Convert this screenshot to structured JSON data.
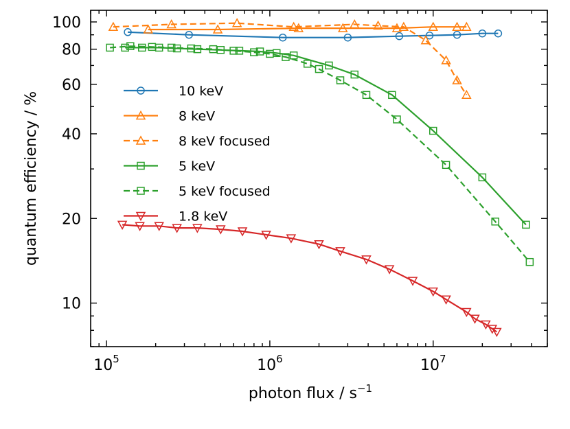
{
  "chart_data": {
    "type": "line",
    "title": "",
    "xlabel": "photon flux / s",
    "xlabel_superscript": "−1",
    "ylabel": "quantum efficiency / %",
    "xscale": "log",
    "yscale": "log",
    "xlim": [
      80000,
      50000000
    ],
    "ylim": [
      7,
      110
    ],
    "xticks": [
      {
        "value": 100000,
        "base": "10",
        "exp": "5"
      },
      {
        "value": 1000000,
        "base": "10",
        "exp": "6"
      },
      {
        "value": 10000000,
        "base": "10",
        "exp": "7"
      }
    ],
    "yticks": [
      {
        "value": 10,
        "label": "10"
      },
      {
        "value": 20,
        "label": "20"
      },
      {
        "value": 40,
        "label": "40"
      },
      {
        "value": 60,
        "label": "60"
      },
      {
        "value": 80,
        "label": "80"
      },
      {
        "value": 100,
        "label": "100"
      }
    ],
    "grid": false,
    "legend_position": "center-left",
    "series": [
      {
        "name": "10 keV",
        "color": "#1f77b4",
        "dash": "solid",
        "marker": "circle",
        "x": [
          135000,
          320000,
          1200000,
          3000000,
          6200000,
          9500000,
          14000000,
          20000000,
          25000000
        ],
        "y": [
          92,
          90,
          88,
          88,
          89,
          89.5,
          90,
          91,
          91
        ]
      },
      {
        "name": "8 keV",
        "color": "#ff7f0e",
        "dash": "solid",
        "marker": "triangle-up",
        "x": [
          180000,
          480000,
          1500000,
          2800000,
          6000000,
          10000000,
          14000000,
          16000000
        ],
        "y": [
          94,
          94,
          95,
          95,
          95,
          96,
          96,
          96
        ]
      },
      {
        "name": "8 keV focused",
        "color": "#ff7f0e",
        "dash": "dashed",
        "marker": "triangle-up",
        "x": [
          110000,
          250000,
          630000,
          1400000,
          3300000,
          4600000,
          6600000,
          9000000,
          12000000,
          14000000,
          16000000
        ],
        "y": [
          96,
          98,
          99,
          96,
          98,
          97,
          96,
          86,
          73,
          62,
          55
        ]
      },
      {
        "name": "5 keV",
        "color": "#2ca02c",
        "dash": "solid",
        "marker": "square",
        "x": [
          130000,
          165000,
          210000,
          270000,
          360000,
          500000,
          650000,
          870000,
          1100000,
          1400000,
          2300000,
          3300000,
          5600000,
          10000000,
          20000000,
          37000000
        ],
        "y": [
          81,
          81,
          81,
          80.5,
          80,
          79.5,
          79,
          78.5,
          77.5,
          76,
          70,
          65,
          55,
          41,
          28,
          19
        ]
      },
      {
        "name": "5 keV focused",
        "color": "#2ca02c",
        "dash": "dashed",
        "marker": "square",
        "x": [
          105000,
          140000,
          190000,
          250000,
          330000,
          450000,
          600000,
          800000,
          1000000,
          1250000,
          1700000,
          2000000,
          2700000,
          3900000,
          6000000,
          12000000,
          24000000,
          39000000
        ],
        "y": [
          81,
          82,
          81.5,
          81,
          80.5,
          80,
          79,
          78,
          77,
          75,
          71,
          68,
          62,
          55,
          45,
          31,
          19.5,
          14
        ]
      },
      {
        "name": "1.8 keV",
        "color": "#d62728",
        "dash": "solid",
        "marker": "triangle-down",
        "x": [
          125000,
          160000,
          210000,
          270000,
          360000,
          500000,
          680000,
          950000,
          1350000,
          2000000,
          2700000,
          3900000,
          5400000,
          7500000,
          10000000,
          12000000,
          16000000,
          18000000,
          21000000,
          23000000,
          24500000
        ],
        "y": [
          19,
          18.8,
          18.8,
          18.5,
          18.5,
          18.3,
          18,
          17.5,
          17,
          16.2,
          15.3,
          14.3,
          13.2,
          12,
          11,
          10.3,
          9.3,
          8.8,
          8.4,
          8.1,
          7.9
        ]
      }
    ]
  }
}
